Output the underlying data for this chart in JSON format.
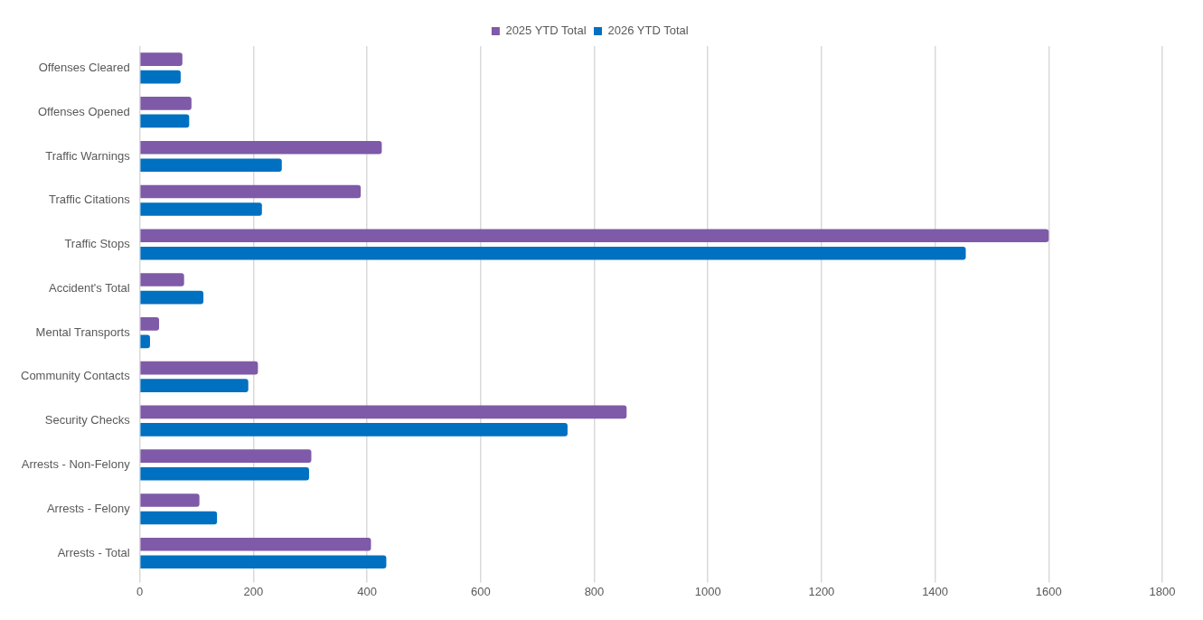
{
  "chart_data": {
    "type": "bar",
    "orientation": "horizontal",
    "categories": [
      "Offenses Cleared",
      "Offenses Opened",
      "Traffic Warnings",
      "Traffic Citations",
      "Traffic Stops",
      "Accident's Total",
      "Mental Transports",
      "Community Contacts",
      "Security Checks",
      "Arrests - Non-Felony",
      "Arrests - Felony",
      "Arrests - Total"
    ],
    "series": [
      {
        "name": "2025 YTD Total",
        "color": "#7f5aa8",
        "values": [
          75,
          91,
          426,
          389,
          1600,
          78,
          34,
          208,
          857,
          302,
          105,
          407
        ]
      },
      {
        "name": "2026 YTD Total",
        "color": "#0070c0",
        "values": [
          72,
          87,
          250,
          215,
          1454,
          112,
          18,
          191,
          753,
          298,
          136,
          434
        ]
      }
    ],
    "xlim": [
      0,
      1800
    ],
    "xticks": [
      0,
      200,
      400,
      600,
      800,
      1000,
      1200,
      1400,
      1600,
      1800
    ],
    "grid": "x",
    "legend": "top"
  }
}
